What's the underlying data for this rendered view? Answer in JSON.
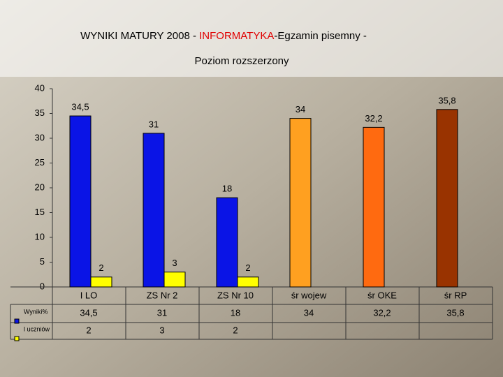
{
  "chart_data": {
    "type": "bar",
    "title": [
      "WYNIKI MATURY 2008  -  ",
      "INFORMATYKA",
      "-Egzamin pisemny -"
    ],
    "subtitle": "Poziom rozszerzony",
    "categories": [
      "I LO",
      "ZS Nr 2",
      "ZS Nr 10",
      "śr  wojew",
      "śr  OKE",
      "śr  RP"
    ],
    "series": [
      {
        "name": "Wyniki%",
        "color": "#0a14e6",
        "colors": [
          "#0a14e6",
          "#0a14e6",
          "#0a14e6",
          "#ffa020",
          "#ff6a10",
          "#993300"
        ],
        "values": [
          34.5,
          31,
          18,
          34,
          32.2,
          35.8
        ],
        "value_labels": [
          "34,5",
          "31",
          "18",
          "34",
          "32,2",
          "35,8"
        ]
      },
      {
        "name": "l uczniów",
        "color": "#ffff00",
        "values": [
          2,
          3,
          2,
          null,
          null,
          null
        ]
      }
    ],
    "ylim": [
      0,
      40
    ],
    "yticks": [
      0,
      5,
      10,
      15,
      20,
      25,
      30,
      35,
      40
    ],
    "grid": false
  }
}
